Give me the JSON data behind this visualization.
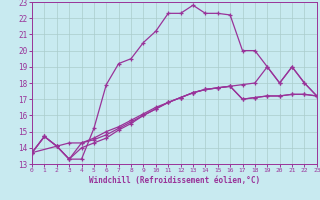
{
  "xlabel": "Windchill (Refroidissement éolien,°C)",
  "xlim": [
    0,
    23
  ],
  "ylim": [
    13,
    23
  ],
  "xticks": [
    0,
    1,
    2,
    3,
    4,
    5,
    6,
    7,
    8,
    9,
    10,
    11,
    12,
    13,
    14,
    15,
    16,
    17,
    18,
    19,
    20,
    21,
    22,
    23
  ],
  "yticks": [
    13,
    14,
    15,
    16,
    17,
    18,
    19,
    20,
    21,
    22,
    23
  ],
  "bg_color": "#c8eaf0",
  "grid_color": "#aacccc",
  "line_color": "#993399",
  "curve1_x": [
    0,
    1,
    2,
    3,
    4,
    5,
    6,
    7,
    8,
    9,
    10,
    11,
    12,
    13,
    14,
    15,
    16,
    17,
    18,
    19,
    20,
    21,
    22,
    23
  ],
  "curve1_y": [
    13.7,
    14.7,
    14.1,
    13.3,
    13.3,
    15.2,
    17.9,
    19.2,
    19.5,
    20.5,
    21.2,
    22.3,
    22.3,
    22.8,
    22.3,
    22.3,
    22.2,
    20.0,
    20.0,
    19.0,
    18.0,
    19.0,
    18.0,
    17.2
  ],
  "curve2_x": [
    0,
    1,
    2,
    3,
    4,
    5,
    6,
    7,
    8,
    9,
    10,
    11,
    12,
    13,
    14,
    15,
    16,
    17,
    18,
    19,
    20,
    21,
    22,
    23
  ],
  "curve2_y": [
    13.7,
    14.7,
    14.1,
    14.3,
    14.3,
    14.6,
    15.0,
    15.3,
    15.7,
    16.1,
    16.5,
    16.8,
    17.1,
    17.4,
    17.6,
    17.7,
    17.8,
    17.0,
    17.1,
    17.2,
    17.2,
    17.3,
    17.3,
    17.2
  ],
  "curve3_x": [
    0,
    2,
    3,
    4,
    5,
    6,
    7,
    8,
    9,
    10,
    11,
    12,
    13,
    14,
    15,
    16,
    17,
    18,
    19,
    20,
    21,
    22,
    23
  ],
  "curve3_y": [
    13.7,
    14.1,
    13.3,
    14.0,
    14.3,
    14.6,
    15.1,
    15.5,
    16.0,
    16.4,
    16.8,
    17.1,
    17.4,
    17.6,
    17.7,
    17.8,
    17.0,
    17.1,
    17.2,
    17.2,
    17.3,
    17.3,
    17.2
  ],
  "curve4_x": [
    0,
    1,
    2,
    3,
    4,
    5,
    6,
    7,
    8,
    9,
    10,
    11,
    12,
    13,
    14,
    15,
    16,
    17,
    18,
    19,
    20,
    21,
    22,
    23
  ],
  "curve4_y": [
    13.7,
    14.7,
    14.1,
    13.3,
    14.3,
    14.5,
    14.8,
    15.2,
    15.6,
    16.0,
    16.4,
    16.8,
    17.1,
    17.4,
    17.6,
    17.7,
    17.8,
    17.9,
    18.0,
    19.0,
    18.0,
    19.0,
    18.0,
    17.2
  ]
}
